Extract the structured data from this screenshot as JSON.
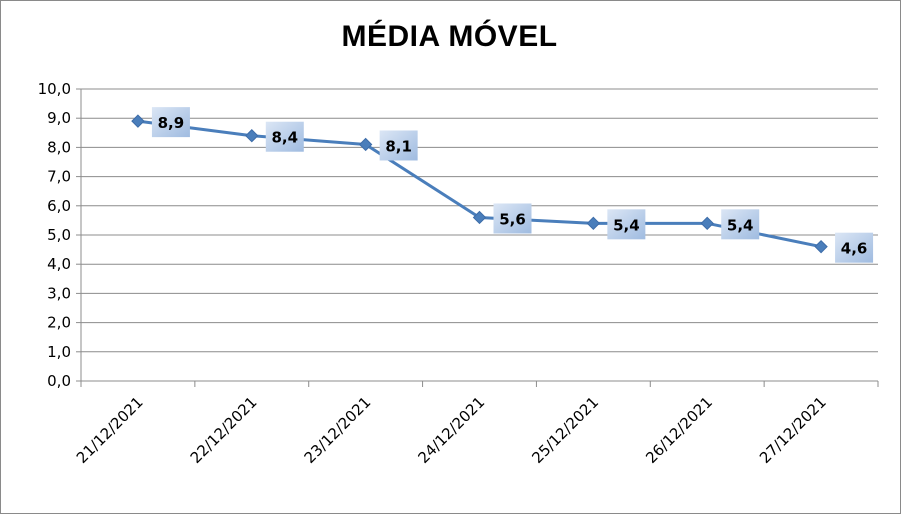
{
  "chart_data": {
    "type": "line",
    "title": "MÉDIA MÓVEL",
    "categories": [
      "21/12/2021",
      "22/12/2021",
      "23/12/2021",
      "24/12/2021",
      "25/12/2021",
      "26/12/2021",
      "27/12/2021"
    ],
    "series": [
      {
        "values": [
          8.9,
          8.4,
          8.1,
          5.6,
          5.4,
          5.4,
          4.6
        ]
      }
    ],
    "data_labels": [
      "8,9",
      "8,4",
      "8,1",
      "5,6",
      "5,4",
      "5,4",
      "4,6"
    ],
    "y_ticks": [
      "0,0",
      "1,0",
      "2,0",
      "3,0",
      "4,0",
      "5,0",
      "6,0",
      "7,0",
      "8,0",
      "9,0",
      "10,0"
    ],
    "ylim": [
      0,
      10
    ],
    "grid": true,
    "legend": "none",
    "colors": {
      "line": "#4a7ebb",
      "marker": "#4a7ebb",
      "grid": "#8c8c8c",
      "label_bg": "#b9cde8"
    }
  }
}
